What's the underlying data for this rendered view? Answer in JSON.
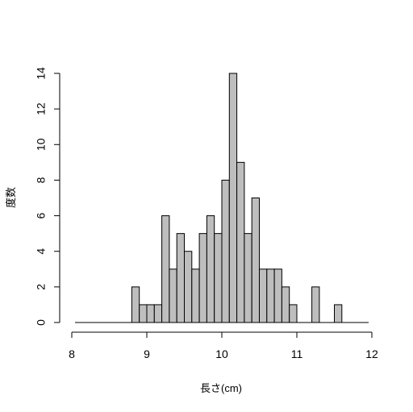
{
  "chart_data": {
    "type": "bar",
    "title": "",
    "xlabel": "長さ(cm)",
    "ylabel": "度数",
    "xlim": [
      8,
      12
    ],
    "ylim": [
      0,
      14
    ],
    "xticks": [
      "8",
      "9",
      "10",
      "11",
      "12"
    ],
    "yticks": [
      "0",
      "2",
      "4",
      "6",
      "8",
      "10",
      "12",
      "14"
    ],
    "bin_width": 0.1,
    "bins": [
      {
        "x0": 8.8,
        "x1": 8.9,
        "count": 2
      },
      {
        "x0": 8.9,
        "x1": 9.0,
        "count": 1
      },
      {
        "x0": 9.0,
        "x1": 9.1,
        "count": 1
      },
      {
        "x0": 9.1,
        "x1": 9.2,
        "count": 1
      },
      {
        "x0": 9.2,
        "x1": 9.3,
        "count": 6
      },
      {
        "x0": 9.3,
        "x1": 9.4,
        "count": 3
      },
      {
        "x0": 9.4,
        "x1": 9.5,
        "count": 5
      },
      {
        "x0": 9.5,
        "x1": 9.6,
        "count": 4
      },
      {
        "x0": 9.6,
        "x1": 9.7,
        "count": 3
      },
      {
        "x0": 9.7,
        "x1": 9.8,
        "count": 5
      },
      {
        "x0": 9.8,
        "x1": 9.9,
        "count": 6
      },
      {
        "x0": 9.9,
        "x1": 10.0,
        "count": 5
      },
      {
        "x0": 10.0,
        "x1": 10.1,
        "count": 8
      },
      {
        "x0": 10.1,
        "x1": 10.2,
        "count": 14
      },
      {
        "x0": 10.2,
        "x1": 10.3,
        "count": 9
      },
      {
        "x0": 10.3,
        "x1": 10.4,
        "count": 5
      },
      {
        "x0": 10.4,
        "x1": 10.5,
        "count": 7
      },
      {
        "x0": 10.5,
        "x1": 10.6,
        "count": 3
      },
      {
        "x0": 10.6,
        "x1": 10.7,
        "count": 3
      },
      {
        "x0": 10.7,
        "x1": 10.8,
        "count": 3
      },
      {
        "x0": 10.8,
        "x1": 10.9,
        "count": 2
      },
      {
        "x0": 10.9,
        "x1": 11.0,
        "count": 1
      },
      {
        "x0": 11.2,
        "x1": 11.3,
        "count": 2
      },
      {
        "x0": 11.5,
        "x1": 11.6,
        "count": 1
      }
    ],
    "baseline_range": [
      8.0,
      12.0
    ],
    "bar_color": "#bebebe",
    "edge_color": "#000000",
    "grid": false,
    "legend": "none"
  }
}
